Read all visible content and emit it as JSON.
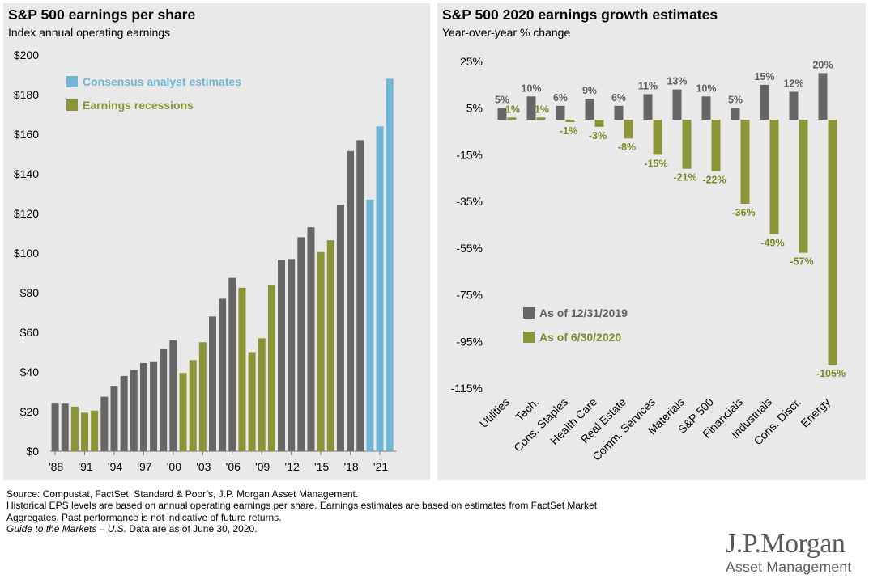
{
  "colors": {
    "gray": "#666666",
    "olive": "#8c9438",
    "blue": "#71b6d4",
    "panel_bg": "#e9e9e9",
    "olive_text": "#7c8a2a",
    "gray_text": "#5f5f5f"
  },
  "chart_data": [
    {
      "type": "bar",
      "title": "S&P 500 earnings per share",
      "subtitle": "Index annual operating earnings",
      "years": [
        1988,
        1989,
        1990,
        1991,
        1992,
        1993,
        1994,
        1995,
        1996,
        1997,
        1998,
        1999,
        2000,
        2001,
        2002,
        2003,
        2004,
        2005,
        2006,
        2007,
        2008,
        2009,
        2010,
        2011,
        2012,
        2013,
        2014,
        2015,
        2016,
        2017,
        2018,
        2019,
        2020,
        2021,
        2022
      ],
      "values": [
        24,
        24,
        22.5,
        19.5,
        20.5,
        27.5,
        33,
        38,
        41,
        44.5,
        45,
        51.5,
        56,
        39.5,
        46,
        55,
        68,
        77,
        87.5,
        82.5,
        50,
        57,
        84,
        96.5,
        97,
        108,
        113,
        100.5,
        106.5,
        124.5,
        151.5,
        157,
        127,
        164,
        188
      ],
      "status": [
        "actual",
        "actual",
        "recession",
        "recession",
        "recession",
        "actual",
        "actual",
        "actual",
        "actual",
        "actual",
        "actual",
        "actual",
        "actual",
        "recession",
        "recession",
        "recession",
        "actual",
        "actual",
        "actual",
        "recession",
        "recession",
        "recession",
        "recession",
        "actual",
        "actual",
        "actual",
        "actual",
        "recession",
        "recession",
        "actual",
        "actual",
        "actual",
        "estimate",
        "estimate",
        "estimate"
      ],
      "x_tick_labels": [
        "'88",
        "'91",
        "'94",
        "'97",
        "'00",
        "'03",
        "'06",
        "'09",
        "'12",
        "'15",
        "'18",
        "'21"
      ],
      "y_ticks": [
        0,
        20,
        40,
        60,
        80,
        100,
        120,
        140,
        160,
        180,
        200
      ],
      "y_tick_labels": [
        "$0",
        "$20",
        "$40",
        "$60",
        "$80",
        "$100",
        "$120",
        "$140",
        "$160",
        "$180",
        "$200"
      ],
      "ylim": [
        0,
        200
      ],
      "legend_position": "top-left",
      "legend": [
        {
          "label": "Consensus analyst estimates",
          "status": "estimate"
        },
        {
          "label": "Earnings recessions",
          "status": "recession"
        }
      ]
    },
    {
      "type": "bar",
      "title": "S&P 500 2020 earnings growth estimates",
      "subtitle": "Year-over-year % change",
      "categories": [
        "Utilities",
        "Tech.",
        "Cons. Staples",
        "Health Care",
        "Real Estate",
        "Comm. Services",
        "Materials",
        "S&P 500",
        "Financials",
        "Industrials",
        "Cons. Discr.",
        "Energy"
      ],
      "series": [
        {
          "name": "As of 12/31/2019",
          "values": [
            5,
            10,
            6,
            9,
            6,
            11,
            13,
            10,
            5,
            15,
            12,
            20
          ],
          "labels": [
            "5%",
            "10%",
            "6%",
            "9%",
            "6%",
            "11%",
            "13%",
            "10%",
            "5%",
            "15%",
            "12%",
            "20%"
          ]
        },
        {
          "name": "As of 6/30/2020",
          "values": [
            1,
            1,
            -1,
            -3,
            -8,
            -15,
            -21,
            -22,
            -36,
            -49,
            -57,
            -105
          ],
          "labels": [
            "1%",
            "1%",
            "-1%",
            "-3%",
            "-8%",
            "-15%",
            "-21%",
            "-22%",
            "-36%",
            "-49%",
            "-57%",
            "-105%"
          ]
        }
      ],
      "y_ticks": [
        25,
        5,
        -15,
        -35,
        -55,
        -75,
        -95,
        -115
      ],
      "y_tick_labels": [
        "25%",
        "5%",
        "-15%",
        "-35%",
        "-55%",
        "-75%",
        "-95%",
        "-115%"
      ],
      "ylim": [
        -115,
        25
      ],
      "legend_position": "bottom-left"
    }
  ],
  "footer": {
    "line1": "Source: Compustat, FactSet, Standard & Poor’s, J.P. Morgan Asset Management.",
    "line2": "Historical EPS levels are based on annual operating earnings per share. Earnings estimates are based on estimates from FactSet Market",
    "line3": "Aggregates. Past performance is not indicative of future returns.",
    "line4_italic": "Guide to the Markets – U.S.",
    "line4_rest": " Data are as of June 30, 2020."
  },
  "logo": {
    "line1": "J.P.Morgan",
    "line2": "Asset Management"
  }
}
